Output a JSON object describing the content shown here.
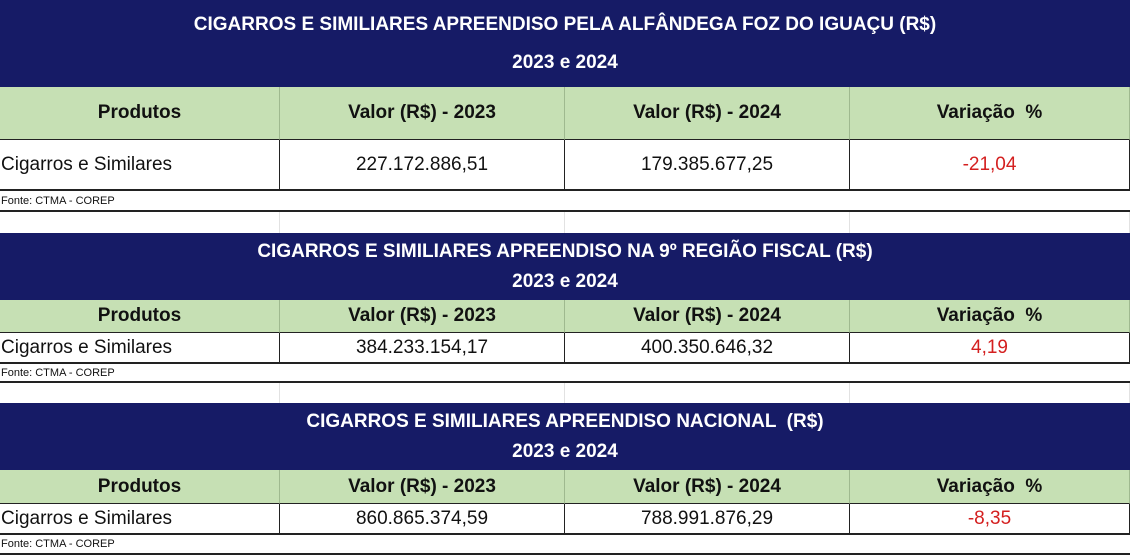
{
  "tables": [
    {
      "title": "CIGARROS E SIMILIARES APREENDISO PELA ALFÂNDEGA FOZ DO IGUAÇU (R$)",
      "subtitle": "2023 e 2024",
      "headers": [
        "Produtos",
        "Valor (R$) - 2023",
        "Valor (R$) - 2024",
        "Variação  %"
      ],
      "rows": [
        [
          "Cigarros e Similares",
          "227.172.886,51",
          "179.385.677,25",
          "-21,04"
        ]
      ],
      "source": "Fonte: CTMA - COREP"
    },
    {
      "title": "CIGARROS E SIMILIARES APREENDISO NA 9º REGIÃO FISCAL (R$)",
      "subtitle": "2023 e 2024",
      "headers": [
        "Produtos",
        "Valor (R$) - 2023",
        "Valor (R$) - 2024",
        "Variação  %"
      ],
      "rows": [
        [
          "Cigarros e Similares",
          "384.233.154,17",
          "400.350.646,32",
          "4,19"
        ]
      ],
      "source": "Fonte: CTMA - COREP"
    },
    {
      "title": "CIGARROS E SIMILIARES APREENDISO NACIONAL  (R$)",
      "subtitle": "2023 e 2024",
      "headers": [
        "Produtos",
        "Valor (R$) - 2023",
        "Valor (R$) - 2024",
        "Variação  %"
      ],
      "rows": [
        [
          "Cigarros e Similares",
          "860.865.374,59",
          "788.991.876,29",
          "-8,35"
        ]
      ],
      "source": "Fonte: CTMA - COREP"
    }
  ]
}
